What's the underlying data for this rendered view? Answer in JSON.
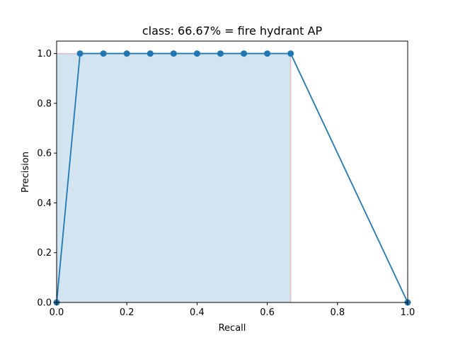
{
  "chart_data": {
    "type": "line",
    "title": "class: 66.67% = fire hydrant AP",
    "xlabel": "Recall",
    "ylabel": "Precision",
    "xlim": [
      0.0,
      1.0
    ],
    "ylim": [
      0.0,
      1.05
    ],
    "grid": false,
    "x_ticks": [
      "0.0",
      "0.2",
      "0.4",
      "0.6",
      "0.8",
      "1.0"
    ],
    "y_ticks": [
      "0.0",
      "0.2",
      "0.4",
      "0.6",
      "0.8",
      "1.0"
    ],
    "series": [
      {
        "marker": "circle",
        "color": "#1f77b4",
        "x": [
          0.0,
          0.0667,
          0.1333,
          0.2,
          0.2667,
          0.3333,
          0.4,
          0.4667,
          0.5333,
          0.6,
          0.6667,
          1.0
        ],
        "y": [
          0.0,
          1.0,
          1.0,
          1.0,
          1.0,
          1.0,
          1.0,
          1.0,
          1.0,
          1.0,
          1.0,
          0.0
        ]
      }
    ],
    "interpolated_precision": {
      "color": "#d62728",
      "x": [
        0.0,
        0.6667,
        0.6667
      ],
      "y": [
        1.0,
        1.0,
        0.0
      ]
    },
    "area_fill": {
      "color": "#1f77b4",
      "opacity": 0.2,
      "x": [
        0.0,
        0.6667
      ],
      "y": 1.0
    }
  }
}
